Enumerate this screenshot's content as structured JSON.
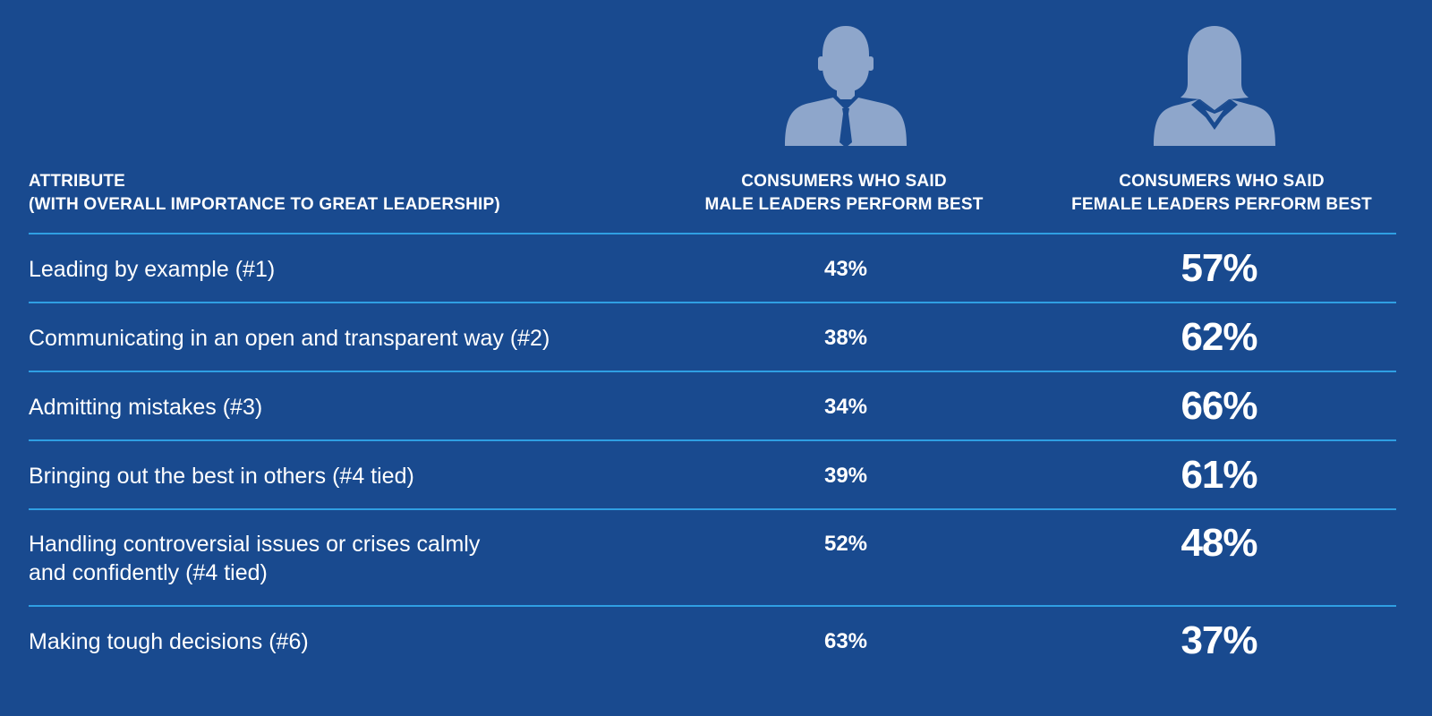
{
  "colors": {
    "background": "#194a8f",
    "divider": "#2f9fe3",
    "icon": "#8ea6cb",
    "text": "#ffffff"
  },
  "icons": {
    "male": "male-leader-icon",
    "female": "female-leader-icon"
  },
  "headers": {
    "attribute": [
      "ATTRIBUTE",
      "(WITH OVERALL IMPORTANCE TO GREAT LEADERSHIP)"
    ],
    "male": [
      "CONSUMERS WHO SAID",
      "MALE LEADERS PERFORM BEST"
    ],
    "female": [
      "CONSUMERS WHO SAID",
      "FEMALE LEADERS PERFORM BEST"
    ]
  },
  "chart_data": {
    "type": "table",
    "columns": [
      "ATTRIBUTE (WITH OVERALL IMPORTANCE TO GREAT LEADERSHIP)",
      "CONSUMERS WHO SAID MALE LEADERS PERFORM BEST",
      "CONSUMERS WHO SAID FEMALE LEADERS PERFORM BEST"
    ],
    "rows": [
      {
        "attribute": [
          "Leading by example (#1)"
        ],
        "male": "43%",
        "female": "57%"
      },
      {
        "attribute": [
          "Communicating in an open and transparent way (#2)"
        ],
        "male": "38%",
        "female": "62%"
      },
      {
        "attribute": [
          "Admitting mistakes (#3)"
        ],
        "male": "34%",
        "female": "66%"
      },
      {
        "attribute": [
          "Bringing out the best in others (#4 tied)"
        ],
        "male": "39%",
        "female": "61%"
      },
      {
        "attribute": [
          "Handling controversial issues or crises calmly",
          "and confidently (#4 tied)"
        ],
        "male": "52%",
        "female": "48%"
      },
      {
        "attribute": [
          "Making tough decisions (#6)"
        ],
        "male": "63%",
        "female": "37%"
      }
    ]
  }
}
